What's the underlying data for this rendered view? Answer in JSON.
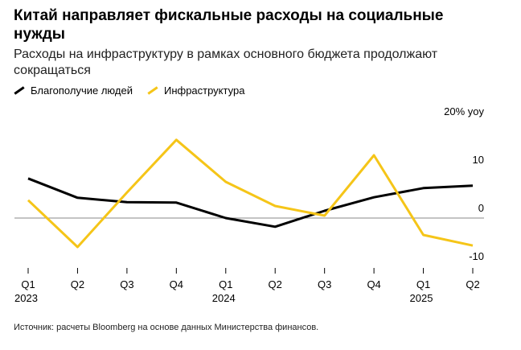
{
  "chart_data": {
    "type": "line",
    "title": "Китай направляет фискальные расходы на социальные нужды",
    "subtitle": "Расходы на инфраструктуру в рамках основного бюджета продолжают сокращаться",
    "source": "Источник: расчеты Bloomberg на основе данных Министерства финансов.",
    "categories": [
      "Q1",
      "Q2",
      "Q3",
      "Q4",
      "Q1",
      "Q2",
      "Q3",
      "Q4",
      "Q1",
      "Q2"
    ],
    "years": [
      "2023",
      null,
      null,
      null,
      "2024",
      null,
      null,
      null,
      "2025",
      null
    ],
    "series": [
      {
        "name": "Благополучие людей",
        "color": "#000000",
        "values": [
          8.2,
          4.2,
          3.3,
          3.2,
          0,
          -1.8,
          1.5,
          4.3,
          6.2,
          6.7
        ]
      },
      {
        "name": "Инфраструктура",
        "color": "#f5c518",
        "values": [
          3.7,
          -6,
          5.3,
          16.2,
          7.5,
          2.5,
          0.5,
          13,
          -3.5,
          -5.7
        ]
      }
    ],
    "ylim": [
      -10,
      20
    ],
    "yticks": [
      -10,
      0,
      10,
      {
        "value": 20,
        "label": "20% yoy"
      }
    ]
  }
}
